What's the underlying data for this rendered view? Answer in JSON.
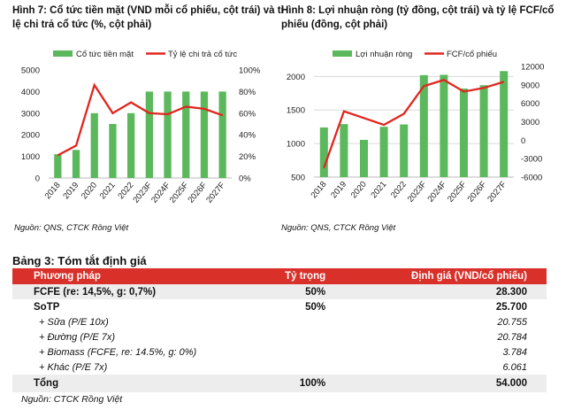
{
  "chart_data": [
    {
      "type": "bar+line",
      "title": "Hình 7: Cổ tức tiền mặt (VND mỗi cổ phiếu, cột trái) và tỉ lệ chi trả cổ tức (%, cột phải)",
      "categories": [
        "2018",
        "2019",
        "2020",
        "2021",
        "2022",
        "2023F",
        "2024F",
        "2025F",
        "2026F",
        "2027F"
      ],
      "series": [
        {
          "name": "Cổ tức tiền mặt",
          "type": "bar",
          "axis": "left",
          "color": "#5cb85c",
          "values": [
            1100,
            1300,
            3000,
            2500,
            3000,
            4000,
            4000,
            4000,
            4000,
            4000
          ]
        },
        {
          "name": "Tỷ lệ chi trả cổ tức",
          "type": "line",
          "axis": "right",
          "color": "#e0261f",
          "values": [
            21,
            30,
            86,
            60,
            70,
            60,
            59,
            66,
            64,
            58
          ]
        }
      ],
      "ylim": [
        0,
        5000
      ],
      "yticks": [
        "0",
        "1000",
        "2000",
        "3000",
        "4000",
        "5000"
      ],
      "y2lim": [
        0,
        100
      ],
      "y2ticks": [
        "0%",
        "20%",
        "40%",
        "60%",
        "80%",
        "100%"
      ],
      "grid": false,
      "legend": "top",
      "source": "Nguồn: QNS, CTCK Rồng Việt"
    },
    {
      "type": "bar+line",
      "title": "Hình 8: Lợi nhuận ròng (tỷ đồng, cột trái) và tỷ lệ FCF/cổ phiếu (đồng, cột phải)",
      "categories": [
        "2018",
        "2019",
        "2020",
        "2021",
        "2022",
        "2023F",
        "2024F",
        "2025F",
        "2026F",
        "2027F"
      ],
      "series": [
        {
          "name": "Lợi nhuận ròng",
          "type": "bar",
          "axis": "left",
          "color": "#5cb85c",
          "values": [
            1240,
            1290,
            1055,
            1250,
            1285,
            2020,
            2025,
            1820,
            1870,
            2080
          ]
        },
        {
          "name": "FCF/cổ phiếu",
          "type": "line",
          "axis": "right",
          "color": "#e0261f",
          "values": [
            -4500,
            4700,
            3600,
            2500,
            4300,
            8800,
            9800,
            7900,
            8500,
            9500
          ]
        }
      ],
      "ylim": [
        500,
        2150
      ],
      "yticks": [
        "500",
        "1000",
        "1500",
        "2000"
      ],
      "y2lim": [
        -6000,
        12000
      ],
      "y2ticks": [
        "-6000",
        "-3000",
        "0",
        "3000",
        "6000",
        "9000",
        "12000"
      ],
      "grid": true,
      "legend": "top",
      "source": "Nguồn: QNS, CTCK Rồng Việt"
    }
  ],
  "table": {
    "title": "Bảng 3: Tóm tắt định giá",
    "headers": [
      "Phương pháp",
      "Tỷ trọng",
      "Định giá (VND/cổ phiếu)"
    ],
    "rows": [
      [
        "FCFE (re: 14,5%, g: 0,7%)",
        "50%",
        "28.300"
      ],
      [
        "SoTP",
        "50%",
        "25.700"
      ],
      [
        "+ Sữa (P/E 10x)",
        "",
        "20.755"
      ],
      [
        "+ Đường (P/E 7x)",
        "",
        "20.784"
      ],
      [
        "+ Biomass (FCFE, re: 14.5%, g: 0%)",
        "",
        "3.784"
      ],
      [
        "+ Khác (P/E 7x)",
        "",
        "6.061"
      ],
      [
        "Tổng",
        "100%",
        "54.000"
      ]
    ],
    "source": "Nguồn: CTCK Rồng Việt"
  }
}
